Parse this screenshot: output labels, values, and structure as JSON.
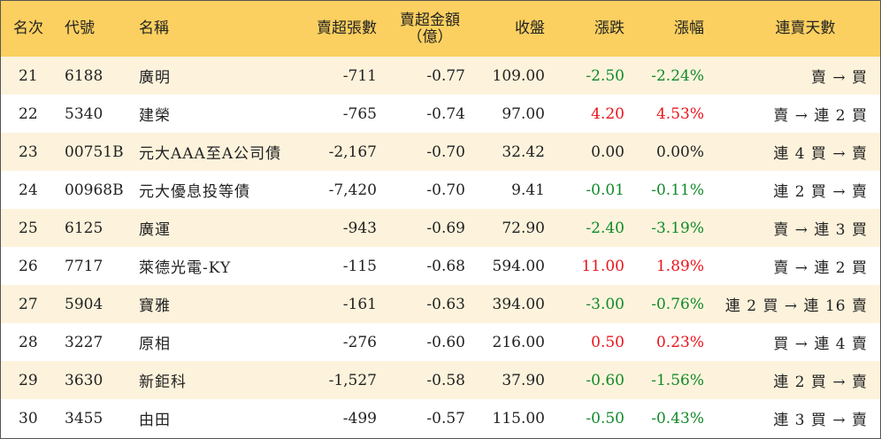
{
  "columns": [
    {
      "key": "rank",
      "label": "名次"
    },
    {
      "key": "code",
      "label": "代號"
    },
    {
      "key": "name",
      "label": "名稱"
    },
    {
      "key": "net_sell_shares",
      "label": "賣超張數"
    },
    {
      "key": "net_sell_amount",
      "label": "賣超金額",
      "label_line2": "（億）"
    },
    {
      "key": "close",
      "label": "收盤"
    },
    {
      "key": "change",
      "label": "漲跌"
    },
    {
      "key": "pct",
      "label": "漲幅"
    },
    {
      "key": "streak",
      "label": "連賣天數"
    }
  ],
  "rows": [
    {
      "rank": "21",
      "code": "6188",
      "name": "廣明",
      "net_sell_shares": "-711",
      "net_sell_amount": "-0.77",
      "close": "109.00",
      "change": "-2.50",
      "pct": "-2.24%",
      "streak": "賣 → 買",
      "direction": "down"
    },
    {
      "rank": "22",
      "code": "5340",
      "name": "建榮",
      "net_sell_shares": "-765",
      "net_sell_amount": "-0.74",
      "close": "97.00",
      "change": "4.20",
      "pct": "4.53%",
      "streak": "賣 → 連 2 買",
      "direction": "up"
    },
    {
      "rank": "23",
      "code": "00751B",
      "name": "元大AAA至A公司債",
      "net_sell_shares": "-2,167",
      "net_sell_amount": "-0.70",
      "close": "32.42",
      "change": "0.00",
      "pct": "0.00%",
      "streak": "連 4 買 → 賣",
      "direction": "flat"
    },
    {
      "rank": "24",
      "code": "00968B",
      "name": "元大優息投等債",
      "net_sell_shares": "-7,420",
      "net_sell_amount": "-0.70",
      "close": "9.41",
      "change": "-0.01",
      "pct": "-0.11%",
      "streak": "連 2 買 → 賣",
      "direction": "down"
    },
    {
      "rank": "25",
      "code": "6125",
      "name": "廣運",
      "net_sell_shares": "-943",
      "net_sell_amount": "-0.69",
      "close": "72.90",
      "change": "-2.40",
      "pct": "-3.19%",
      "streak": "賣 → 連 3 買",
      "direction": "down"
    },
    {
      "rank": "26",
      "code": "7717",
      "name": "萊德光電-KY",
      "net_sell_shares": "-115",
      "net_sell_amount": "-0.68",
      "close": "594.00",
      "change": "11.00",
      "pct": "1.89%",
      "streak": "賣 → 連 2 買",
      "direction": "up"
    },
    {
      "rank": "27",
      "code": "5904",
      "name": "寶雅",
      "net_sell_shares": "-161",
      "net_sell_amount": "-0.63",
      "close": "394.00",
      "change": "-3.00",
      "pct": "-0.76%",
      "streak": "連 2 買 → 連 16 賣",
      "direction": "down"
    },
    {
      "rank": "28",
      "code": "3227",
      "name": "原相",
      "net_sell_shares": "-276",
      "net_sell_amount": "-0.60",
      "close": "216.00",
      "change": "0.50",
      "pct": "0.23%",
      "streak": "買 → 連 4 賣",
      "direction": "up"
    },
    {
      "rank": "29",
      "code": "3630",
      "name": "新鉅科",
      "net_sell_shares": "-1,527",
      "net_sell_amount": "-0.58",
      "close": "37.90",
      "change": "-0.60",
      "pct": "-1.56%",
      "streak": "連 2 買 → 賣",
      "direction": "down"
    },
    {
      "rank": "30",
      "code": "3455",
      "name": "由田",
      "net_sell_shares": "-499",
      "net_sell_amount": "-0.57",
      "close": "115.00",
      "change": "-0.50",
      "pct": "-0.43%",
      "streak": "連 3 買 → 賣",
      "direction": "down"
    }
  ],
  "colors": {
    "header_bg": "#fcd060",
    "row_odd_bg": "#fdf3dc",
    "row_even_bg": "#ffffff",
    "up": "#e8151b",
    "down": "#118a2a",
    "flat": "#222222"
  }
}
